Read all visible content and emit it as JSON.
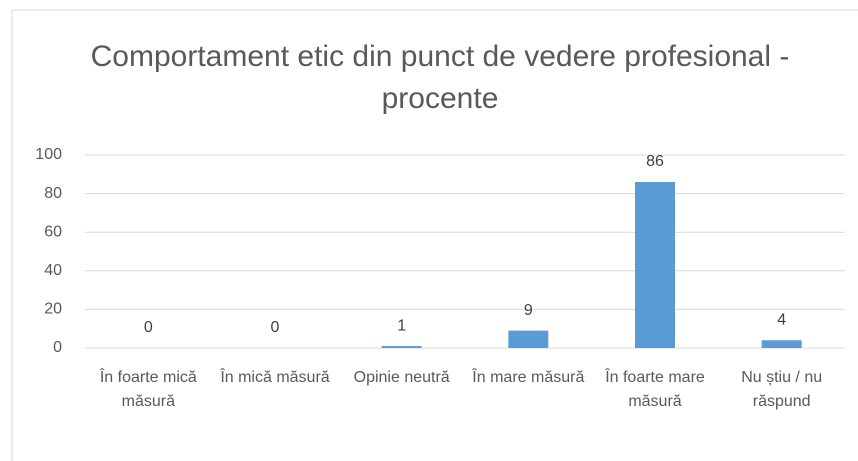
{
  "chart_data": {
    "type": "bar",
    "title": "Comportament etic din punct de vedere profesional - procente",
    "categories": [
      "În foarte mică măsură",
      "În mică măsură",
      "Opinie neutră",
      "În mare măsură",
      "În foarte mare măsură",
      "Nu știu / nu răspund"
    ],
    "values": [
      0,
      0,
      1,
      9,
      86,
      4
    ],
    "color": "#5b9bd5",
    "ylim": [
      0,
      100
    ],
    "yticks": [
      0,
      20,
      40,
      60,
      80,
      100
    ],
    "grid": true
  }
}
